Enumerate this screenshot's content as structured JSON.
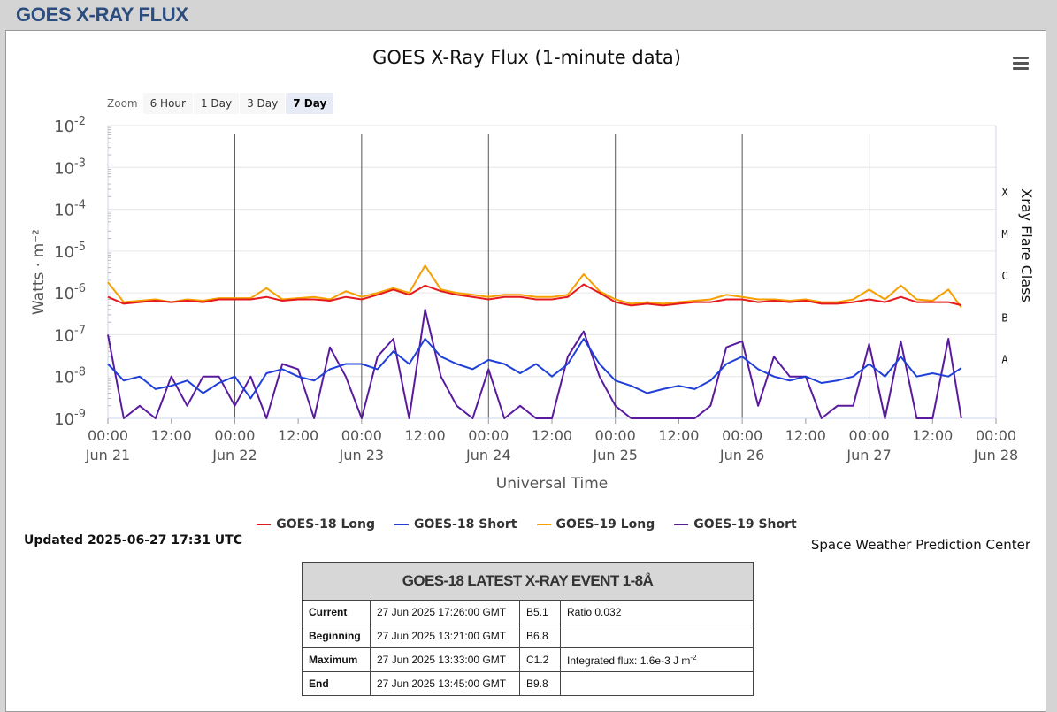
{
  "page": {
    "title": "GOES X-RAY FLUX"
  },
  "toolbar": {
    "zoom_label": "Zoom",
    "zoom_options": [
      "6 Hour",
      "1 Day",
      "3 Day",
      "7 Day"
    ],
    "active_zoom": "7 Day"
  },
  "chart_data": {
    "type": "line",
    "title": "GOES X-Ray Flux (1-minute data)",
    "xlabel": "Universal Time",
    "ylabel": "Watts · m⁻²",
    "y2label": "Xray Flare Class",
    "yscale": "log",
    "ylim": [
      1e-09,
      0.01
    ],
    "y_ticks": [
      {
        "base": "10",
        "exp": "-2"
      },
      {
        "base": "10",
        "exp": "-3"
      },
      {
        "base": "10",
        "exp": "-4"
      },
      {
        "base": "10",
        "exp": "-5"
      },
      {
        "base": "10",
        "exp": "-6"
      },
      {
        "base": "10",
        "exp": "-7"
      },
      {
        "base": "10",
        "exp": "-8"
      },
      {
        "base": "10",
        "exp": "-9"
      }
    ],
    "flare_classes": [
      {
        "label": "X",
        "value": 0.0001
      },
      {
        "label": "M",
        "value": 1e-05
      },
      {
        "label": "C",
        "value": 1e-06
      },
      {
        "label": "B",
        "value": 1e-07
      },
      {
        "label": "A",
        "value": 1e-08
      }
    ],
    "x_ticks": [
      {
        "time": "00:00",
        "date": "Jun 21"
      },
      {
        "time": "12:00",
        "date": ""
      },
      {
        "time": "00:00",
        "date": "Jun 22"
      },
      {
        "time": "12:00",
        "date": ""
      },
      {
        "time": "00:00",
        "date": "Jun 23"
      },
      {
        "time": "12:00",
        "date": ""
      },
      {
        "time": "00:00",
        "date": "Jun 24"
      },
      {
        "time": "12:00",
        "date": ""
      },
      {
        "time": "00:00",
        "date": "Jun 25"
      },
      {
        "time": "12:00",
        "date": ""
      },
      {
        "time": "00:00",
        "date": "Jun 26"
      },
      {
        "time": "12:00",
        "date": ""
      },
      {
        "time": "00:00",
        "date": "Jun 27"
      },
      {
        "time": "12:00",
        "date": ""
      },
      {
        "time": "00:00",
        "date": "Jun 28"
      }
    ],
    "grid": true,
    "legend_position": "bottom-center",
    "series": [
      {
        "name": "GOES-18 Long",
        "color": "#e41a1c",
        "x": [
          "2025-06-21 00:00",
          "2025-06-21 03:00",
          "2025-06-21 06:00",
          "2025-06-21 09:00",
          "2025-06-21 12:00",
          "2025-06-21 15:00",
          "2025-06-21 18:00",
          "2025-06-21 21:00",
          "2025-06-22 00:00",
          "2025-06-22 03:00",
          "2025-06-22 06:00",
          "2025-06-22 09:00",
          "2025-06-22 12:00",
          "2025-06-22 15:00",
          "2025-06-22 18:00",
          "2025-06-22 21:00",
          "2025-06-23 00:00",
          "2025-06-23 03:00",
          "2025-06-23 06:00",
          "2025-06-23 09:00",
          "2025-06-23 12:00",
          "2025-06-23 15:00",
          "2025-06-23 18:00",
          "2025-06-23 21:00",
          "2025-06-24 00:00",
          "2025-06-24 03:00",
          "2025-06-24 06:00",
          "2025-06-24 09:00",
          "2025-06-24 12:00",
          "2025-06-24 15:00",
          "2025-06-24 18:00",
          "2025-06-24 21:00",
          "2025-06-25 00:00",
          "2025-06-25 03:00",
          "2025-06-25 06:00",
          "2025-06-25 09:00",
          "2025-06-25 12:00",
          "2025-06-25 15:00",
          "2025-06-25 18:00",
          "2025-06-25 21:00",
          "2025-06-26 00:00",
          "2025-06-26 03:00",
          "2025-06-26 06:00",
          "2025-06-26 09:00",
          "2025-06-26 12:00",
          "2025-06-26 15:00",
          "2025-06-26 18:00",
          "2025-06-26 21:00",
          "2025-06-27 00:00",
          "2025-06-27 03:00",
          "2025-06-27 06:00",
          "2025-06-27 09:00",
          "2025-06-27 12:00",
          "2025-06-27 15:00",
          "2025-06-27 17:26"
        ],
        "y": [
          8e-07,
          5.5e-07,
          6e-07,
          6.5e-07,
          6e-07,
          6.5e-07,
          6e-07,
          7e-07,
          7e-07,
          7e-07,
          8e-07,
          6.5e-07,
          7e-07,
          7e-07,
          6.5e-07,
          8e-07,
          7e-07,
          9e-07,
          1.2e-06,
          9e-07,
          1.5e-06,
          1.1e-06,
          9e-07,
          8e-07,
          7e-07,
          8e-07,
          8e-07,
          7e-07,
          7e-07,
          8e-07,
          1.6e-06,
          1e-06,
          6e-07,
          5e-07,
          5.5e-07,
          5e-07,
          5.5e-07,
          6e-07,
          6e-07,
          7e-07,
          7e-07,
          6e-07,
          6.5e-07,
          6e-07,
          6.5e-07,
          5.5e-07,
          5.5e-07,
          6e-07,
          7e-07,
          6e-07,
          8e-07,
          6e-07,
          6e-07,
          6e-07,
          5.1e-07
        ]
      },
      {
        "name": "GOES-18 Short",
        "color": "#1f3fd8",
        "x": [
          "2025-06-21 00:00",
          "2025-06-21 03:00",
          "2025-06-21 06:00",
          "2025-06-21 09:00",
          "2025-06-21 12:00",
          "2025-06-21 15:00",
          "2025-06-21 18:00",
          "2025-06-21 21:00",
          "2025-06-22 00:00",
          "2025-06-22 03:00",
          "2025-06-22 06:00",
          "2025-06-22 09:00",
          "2025-06-22 12:00",
          "2025-06-22 15:00",
          "2025-06-22 18:00",
          "2025-06-22 21:00",
          "2025-06-23 00:00",
          "2025-06-23 03:00",
          "2025-06-23 06:00",
          "2025-06-23 09:00",
          "2025-06-23 12:00",
          "2025-06-23 15:00",
          "2025-06-23 18:00",
          "2025-06-23 21:00",
          "2025-06-24 00:00",
          "2025-06-24 03:00",
          "2025-06-24 06:00",
          "2025-06-24 09:00",
          "2025-06-24 12:00",
          "2025-06-24 15:00",
          "2025-06-24 18:00",
          "2025-06-24 21:00",
          "2025-06-25 00:00",
          "2025-06-25 03:00",
          "2025-06-25 06:00",
          "2025-06-25 09:00",
          "2025-06-25 12:00",
          "2025-06-25 15:00",
          "2025-06-25 18:00",
          "2025-06-25 21:00",
          "2025-06-26 00:00",
          "2025-06-26 03:00",
          "2025-06-26 06:00",
          "2025-06-26 09:00",
          "2025-06-26 12:00",
          "2025-06-26 15:00",
          "2025-06-26 18:00",
          "2025-06-26 21:00",
          "2025-06-27 00:00",
          "2025-06-27 03:00",
          "2025-06-27 06:00",
          "2025-06-27 09:00",
          "2025-06-27 12:00",
          "2025-06-27 15:00",
          "2025-06-27 17:26"
        ],
        "y": [
          2e-08,
          8e-09,
          1e-08,
          5e-09,
          6e-09,
          8e-09,
          4e-09,
          7e-09,
          1e-08,
          3e-09,
          1.2e-08,
          1.5e-08,
          1e-08,
          8e-09,
          1.5e-08,
          2e-08,
          2e-08,
          1.5e-08,
          4e-08,
          2e-08,
          8e-08,
          3e-08,
          2e-08,
          1.5e-08,
          2.5e-08,
          2e-08,
          1.2e-08,
          2e-08,
          1e-08,
          2e-08,
          8e-08,
          2e-08,
          8e-09,
          6e-09,
          4e-09,
          5e-09,
          6e-09,
          5e-09,
          8e-09,
          2e-08,
          3e-08,
          1.5e-08,
          1e-08,
          8e-09,
          1e-08,
          7e-09,
          8e-09,
          1e-08,
          2e-08,
          1e-08,
          3e-08,
          1e-08,
          1.2e-08,
          1e-08,
          1.6e-08
        ]
      },
      {
        "name": "GOES-19 Long",
        "color": "#f5a000",
        "x": [
          "2025-06-21 00:00",
          "2025-06-21 03:00",
          "2025-06-21 06:00",
          "2025-06-21 09:00",
          "2025-06-21 12:00",
          "2025-06-21 15:00",
          "2025-06-21 18:00",
          "2025-06-21 21:00",
          "2025-06-22 00:00",
          "2025-06-22 03:00",
          "2025-06-22 06:00",
          "2025-06-22 09:00",
          "2025-06-22 12:00",
          "2025-06-22 15:00",
          "2025-06-22 18:00",
          "2025-06-22 21:00",
          "2025-06-23 00:00",
          "2025-06-23 03:00",
          "2025-06-23 06:00",
          "2025-06-23 09:00",
          "2025-06-23 12:00",
          "2025-06-23 15:00",
          "2025-06-23 18:00",
          "2025-06-23 21:00",
          "2025-06-24 00:00",
          "2025-06-24 03:00",
          "2025-06-24 06:00",
          "2025-06-24 09:00",
          "2025-06-24 12:00",
          "2025-06-24 15:00",
          "2025-06-24 18:00",
          "2025-06-24 21:00",
          "2025-06-25 00:00",
          "2025-06-25 03:00",
          "2025-06-25 06:00",
          "2025-06-25 09:00",
          "2025-06-25 12:00",
          "2025-06-25 15:00",
          "2025-06-25 18:00",
          "2025-06-25 21:00",
          "2025-06-26 00:00",
          "2025-06-26 03:00",
          "2025-06-26 06:00",
          "2025-06-26 09:00",
          "2025-06-26 12:00",
          "2025-06-26 15:00",
          "2025-06-26 18:00",
          "2025-06-26 21:00",
          "2025-06-27 00:00",
          "2025-06-27 03:00",
          "2025-06-27 06:00",
          "2025-06-27 09:00",
          "2025-06-27 12:00",
          "2025-06-27 15:00",
          "2025-06-27 17:26"
        ],
        "y": [
          1.8e-06,
          6e-07,
          6.5e-07,
          7e-07,
          6e-07,
          7e-07,
          6.5e-07,
          7.5e-07,
          7.5e-07,
          7.5e-07,
          1.3e-06,
          7e-07,
          7.5e-07,
          8e-07,
          7e-07,
          1.1e-06,
          8e-07,
          1e-06,
          1.3e-06,
          1e-06,
          4.5e-06,
          1.2e-06,
          1e-06,
          9e-07,
          8e-07,
          9e-07,
          9e-07,
          8e-07,
          8e-07,
          9e-07,
          2.8e-06,
          1.1e-06,
          7e-07,
          5.5e-07,
          6e-07,
          5.5e-07,
          6e-07,
          6.5e-07,
          7e-07,
          9e-07,
          8e-07,
          7e-07,
          7e-07,
          6.5e-07,
          7e-07,
          6e-07,
          6e-07,
          7e-07,
          1.2e-06,
          7e-07,
          1.5e-06,
          7e-07,
          6.5e-07,
          1.2e-06,
          4.5e-07
        ]
      },
      {
        "name": "GOES-19 Short",
        "color": "#5a1a9e",
        "x": [
          "2025-06-21 00:00",
          "2025-06-21 03:00",
          "2025-06-21 06:00",
          "2025-06-21 09:00",
          "2025-06-21 12:00",
          "2025-06-21 15:00",
          "2025-06-21 18:00",
          "2025-06-21 21:00",
          "2025-06-22 00:00",
          "2025-06-22 03:00",
          "2025-06-22 06:00",
          "2025-06-22 09:00",
          "2025-06-22 12:00",
          "2025-06-22 15:00",
          "2025-06-22 18:00",
          "2025-06-22 21:00",
          "2025-06-23 00:00",
          "2025-06-23 03:00",
          "2025-06-23 06:00",
          "2025-06-23 09:00",
          "2025-06-23 12:00",
          "2025-06-23 15:00",
          "2025-06-23 18:00",
          "2025-06-23 21:00",
          "2025-06-24 00:00",
          "2025-06-24 03:00",
          "2025-06-24 06:00",
          "2025-06-24 09:00",
          "2025-06-24 12:00",
          "2025-06-24 15:00",
          "2025-06-24 18:00",
          "2025-06-24 21:00",
          "2025-06-25 00:00",
          "2025-06-25 03:00",
          "2025-06-25 06:00",
          "2025-06-25 09:00",
          "2025-06-25 12:00",
          "2025-06-25 15:00",
          "2025-06-25 18:00",
          "2025-06-25 21:00",
          "2025-06-26 00:00",
          "2025-06-26 03:00",
          "2025-06-26 06:00",
          "2025-06-26 09:00",
          "2025-06-26 12:00",
          "2025-06-26 15:00",
          "2025-06-26 18:00",
          "2025-06-26 21:00",
          "2025-06-27 00:00",
          "2025-06-27 03:00",
          "2025-06-27 06:00",
          "2025-06-27 09:00",
          "2025-06-27 12:00",
          "2025-06-27 15:00",
          "2025-06-27 17:26"
        ],
        "y": [
          1e-07,
          1e-09,
          2e-09,
          1e-09,
          1e-08,
          2e-09,
          1e-08,
          1e-08,
          2e-09,
          1e-08,
          1e-09,
          2e-08,
          1.5e-08,
          1e-09,
          5e-08,
          1e-08,
          1e-09,
          3e-08,
          8e-08,
          1e-09,
          4e-07,
          1e-08,
          2e-09,
          1e-09,
          1.5e-08,
          1e-09,
          2e-09,
          1e-09,
          1e-09,
          3e-08,
          1.2e-07,
          1e-08,
          2e-09,
          1e-09,
          1e-09,
          1e-09,
          1e-09,
          1e-09,
          2e-09,
          5e-08,
          7e-08,
          2e-09,
          3e-08,
          1e-08,
          1e-08,
          1e-09,
          2e-09,
          2e-09,
          6e-08,
          1e-09,
          7e-08,
          1e-09,
          1e-09,
          8e-08,
          1e-09
        ]
      }
    ]
  },
  "legend": [
    "GOES-18 Long",
    "GOES-18 Short",
    "GOES-19 Long",
    "GOES-19 Short"
  ],
  "updated": "Updated 2025-06-27 17:31 UTC",
  "credit": "Space Weather Prediction Center",
  "event_table": {
    "title": "GOES-18 LATEST X-RAY EVENT 1-8Å",
    "rows": [
      {
        "label": "Current",
        "time": "27 Jun 2025 17:26:00 GMT",
        "class": "B5.1",
        "note": "Ratio 0.032"
      },
      {
        "label": "Beginning",
        "time": "27 Jun 2025 13:21:00 GMT",
        "class": "B6.8",
        "note": ""
      },
      {
        "label": "Maximum",
        "time": "27 Jun 2025 13:33:00 GMT",
        "class": "C1.2",
        "note": "Integrated flux: 1.6e-3 J m"
      },
      {
        "label": "End",
        "time": "27 Jun 2025 13:45:00 GMT",
        "class": "B9.8",
        "note": ""
      }
    ],
    "note_exponent": "-2"
  }
}
